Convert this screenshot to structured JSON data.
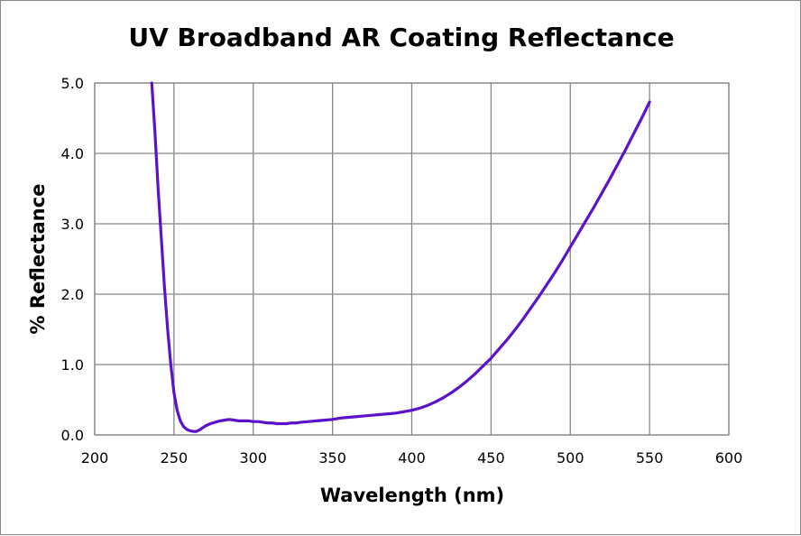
{
  "chart_data": {
    "type": "line",
    "title": "UV Broadband AR Coating Reflectance",
    "xlabel": "Wavelength (nm)",
    "ylabel": "% Reflectance",
    "xlim": [
      200,
      600
    ],
    "ylim": [
      0,
      5
    ],
    "xticks": [
      200,
      250,
      300,
      350,
      400,
      450,
      500,
      550,
      600
    ],
    "yticks": [
      0,
      1,
      2,
      3,
      4,
      5
    ],
    "xtick_labels": [
      "200",
      "250",
      "300",
      "350",
      "400",
      "450",
      "500",
      "550",
      "600"
    ],
    "ytick_labels": [
      "0.0",
      "1.0",
      "2.0",
      "3.0",
      "4.0",
      "5.0"
    ],
    "grid": true,
    "legend": "none",
    "colors": {
      "series": "#5B12C9",
      "grid": "#868686"
    },
    "series": [
      {
        "x": [
          236,
          238,
          240,
          242,
          244,
          246,
          248,
          250,
          252,
          254,
          256,
          258,
          260,
          262,
          264,
          266,
          268,
          270,
          273,
          276,
          279,
          282,
          285,
          288,
          291,
          294,
          297,
          300,
          303,
          306,
          309,
          312,
          315,
          318,
          321,
          324,
          327,
          330,
          335,
          340,
          345,
          350,
          355,
          360,
          365,
          370,
          375,
          380,
          385,
          390,
          395,
          400,
          405,
          410,
          415,
          420,
          425,
          430,
          435,
          440,
          445,
          450,
          455,
          460,
          465,
          470,
          475,
          480,
          485,
          490,
          495,
          500,
          505,
          510,
          515,
          520,
          525,
          530,
          535,
          540,
          545,
          550
        ],
        "y": [
          5.0,
          4.3,
          3.5,
          2.8,
          2.1,
          1.5,
          1.0,
          0.6,
          0.35,
          0.2,
          0.12,
          0.08,
          0.06,
          0.05,
          0.05,
          0.07,
          0.1,
          0.13,
          0.16,
          0.18,
          0.2,
          0.21,
          0.22,
          0.21,
          0.2,
          0.2,
          0.2,
          0.19,
          0.19,
          0.18,
          0.17,
          0.17,
          0.16,
          0.16,
          0.16,
          0.17,
          0.17,
          0.18,
          0.19,
          0.2,
          0.21,
          0.22,
          0.24,
          0.25,
          0.26,
          0.27,
          0.28,
          0.29,
          0.3,
          0.31,
          0.33,
          0.35,
          0.38,
          0.42,
          0.47,
          0.53,
          0.6,
          0.68,
          0.77,
          0.87,
          0.98,
          1.09,
          1.22,
          1.35,
          1.49,
          1.64,
          1.8,
          1.96,
          2.13,
          2.3,
          2.48,
          2.67,
          2.86,
          3.05,
          3.24,
          3.44,
          3.64,
          3.85,
          4.06,
          4.28,
          4.5,
          4.73
        ]
      }
    ]
  }
}
